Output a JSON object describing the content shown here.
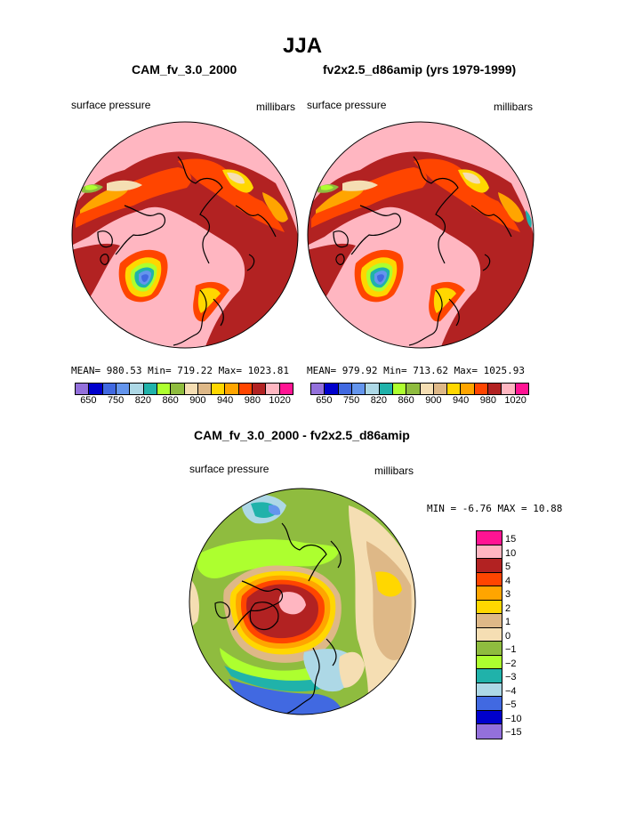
{
  "page_title": "JJA",
  "panels": [
    {
      "case_name": "CAM_fv_3.0_2000",
      "variable": "surface pressure",
      "units": "millibars",
      "stats": "MEAN= 980.53  Min= 719.22  Max= 1023.81",
      "colorbar": {
        "colors": [
          "#9370db",
          "#0000cd",
          "#4169e1",
          "#6495ed",
          "#add8e6",
          "#20b2aa",
          "#adff2f",
          "#8fbc3f",
          "#f5deb3",
          "#deb887",
          "#ffd700",
          "#ffa500",
          "#ff4500",
          "#b22222",
          "#ffb6c1",
          "#ff1493"
        ],
        "tick_labels": [
          "650",
          "750",
          "820",
          "860",
          "900",
          "940",
          "980",
          "1020"
        ]
      }
    },
    {
      "case_name": "fv2x2.5_d86amip (yrs 1979-1999)",
      "variable": "surface pressure",
      "units": "millibars",
      "stats": "MEAN= 979.92  Min= 713.62  Max= 1025.93",
      "colorbar": {
        "colors": [
          "#9370db",
          "#0000cd",
          "#4169e1",
          "#6495ed",
          "#add8e6",
          "#20b2aa",
          "#adff2f",
          "#8fbc3f",
          "#f5deb3",
          "#deb887",
          "#ffd700",
          "#ffa500",
          "#ff4500",
          "#b22222",
          "#ffb6c1",
          "#ff1493"
        ],
        "tick_labels": [
          "650",
          "750",
          "820",
          "860",
          "900",
          "940",
          "980",
          "1020"
        ]
      }
    }
  ],
  "diff_panel": {
    "title": "CAM_fv_3.0_2000 - fv2x2.5_d86amip",
    "variable": "surface pressure",
    "units": "millibars",
    "stats": "MIN =   -6.76 MAX =   10.88",
    "colorbar": {
      "colors": [
        "#ff1493",
        "#ffb6c1",
        "#b22222",
        "#ff4500",
        "#ffa500",
        "#ffd700",
        "#deb887",
        "#f5deb3",
        "#8fbc3f",
        "#adff2f",
        "#20b2aa",
        "#add8e6",
        "#4169e1",
        "#0000cd",
        "#9370db"
      ],
      "tick_labels": [
        "15",
        "10",
        "5",
        "4",
        "3",
        "2",
        "1",
        "0",
        "−1",
        "−2",
        "−3",
        "−4",
        "−5",
        "−10",
        "−15"
      ]
    }
  },
  "map_colors": {
    "background": "#ffb6c1",
    "high": "#b22222",
    "mid": "#ff4500",
    "warm": "#ffa500",
    "yellow": "#ffd700",
    "tan": "#deb887",
    "wheat": "#f5deb3",
    "green": "#8fbc3f",
    "lightgreen": "#adff2f",
    "teal": "#20b2aa",
    "lightblue": "#add8e6",
    "blue": "#4169e1",
    "cornflower": "#6495ed",
    "magenta": "#ff1493"
  }
}
